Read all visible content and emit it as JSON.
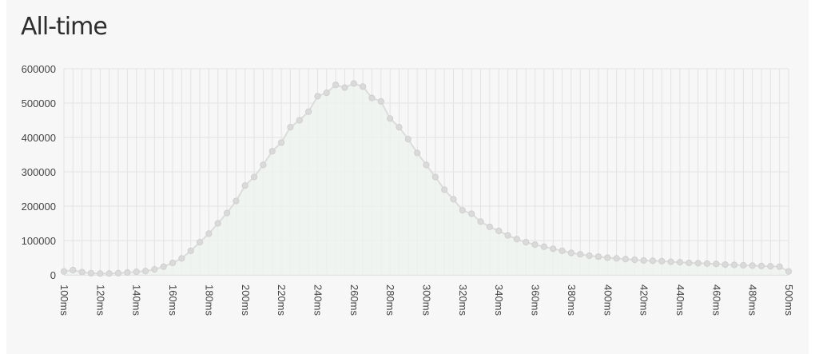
{
  "chart_data": {
    "type": "area",
    "title": "All-time",
    "xlabel": "",
    "ylabel": "",
    "x": [
      100,
      105,
      110,
      115,
      120,
      125,
      130,
      135,
      140,
      145,
      150,
      155,
      160,
      165,
      170,
      175,
      180,
      185,
      190,
      195,
      200,
      205,
      210,
      215,
      220,
      225,
      230,
      235,
      240,
      245,
      250,
      255,
      260,
      265,
      270,
      275,
      280,
      285,
      290,
      295,
      300,
      305,
      310,
      315,
      320,
      325,
      330,
      335,
      340,
      345,
      350,
      355,
      360,
      365,
      370,
      375,
      380,
      385,
      390,
      395,
      400,
      405,
      410,
      415,
      420,
      425,
      430,
      435,
      440,
      445,
      450,
      455,
      460,
      465,
      470,
      475,
      480,
      485,
      490,
      495,
      500
    ],
    "values": [
      10000,
      14000,
      8000,
      5000,
      4000,
      4000,
      5000,
      7000,
      9000,
      11000,
      16000,
      24000,
      35000,
      48000,
      70000,
      95000,
      120000,
      150000,
      180000,
      215000,
      260000,
      285000,
      320000,
      360000,
      385000,
      430000,
      450000,
      475000,
      520000,
      530000,
      553000,
      545000,
      557000,
      548000,
      515000,
      505000,
      455000,
      430000,
      395000,
      355000,
      320000,
      285000,
      248000,
      220000,
      188000,
      178000,
      155000,
      140000,
      128000,
      115000,
      104000,
      95000,
      88000,
      82000,
      76000,
      70000,
      64000,
      60000,
      56000,
      53000,
      50000,
      48000,
      46000,
      44000,
      42000,
      41000,
      40000,
      38000,
      37000,
      35000,
      34000,
      33000,
      32000,
      30000,
      29000,
      28000,
      27000,
      26000,
      25000,
      24000,
      10000
    ],
    "x_tick_labels": [
      "100ms",
      "120ms",
      "140ms",
      "160ms",
      "180ms",
      "200ms",
      "220ms",
      "240ms",
      "260ms",
      "280ms",
      "300ms",
      "320ms",
      "340ms",
      "360ms",
      "380ms",
      "400ms",
      "420ms",
      "440ms",
      "460ms",
      "480ms",
      "500ms"
    ],
    "y_tick_labels": [
      "0",
      "100000",
      "200000",
      "300000",
      "400000",
      "500000",
      "600000"
    ],
    "y_ticks": [
      0,
      100000,
      200000,
      300000,
      400000,
      500000,
      600000
    ],
    "x_ticks": [
      100,
      120,
      140,
      160,
      180,
      200,
      220,
      240,
      260,
      280,
      300,
      320,
      340,
      360,
      380,
      400,
      420,
      440,
      460,
      480,
      500
    ],
    "xlim": [
      100,
      500
    ],
    "ylim": [
      0,
      600000
    ],
    "grid": true,
    "line_color": "#dcdcdc",
    "fill_color": "#eef2ee",
    "grid_color": "#e3e3e3"
  }
}
